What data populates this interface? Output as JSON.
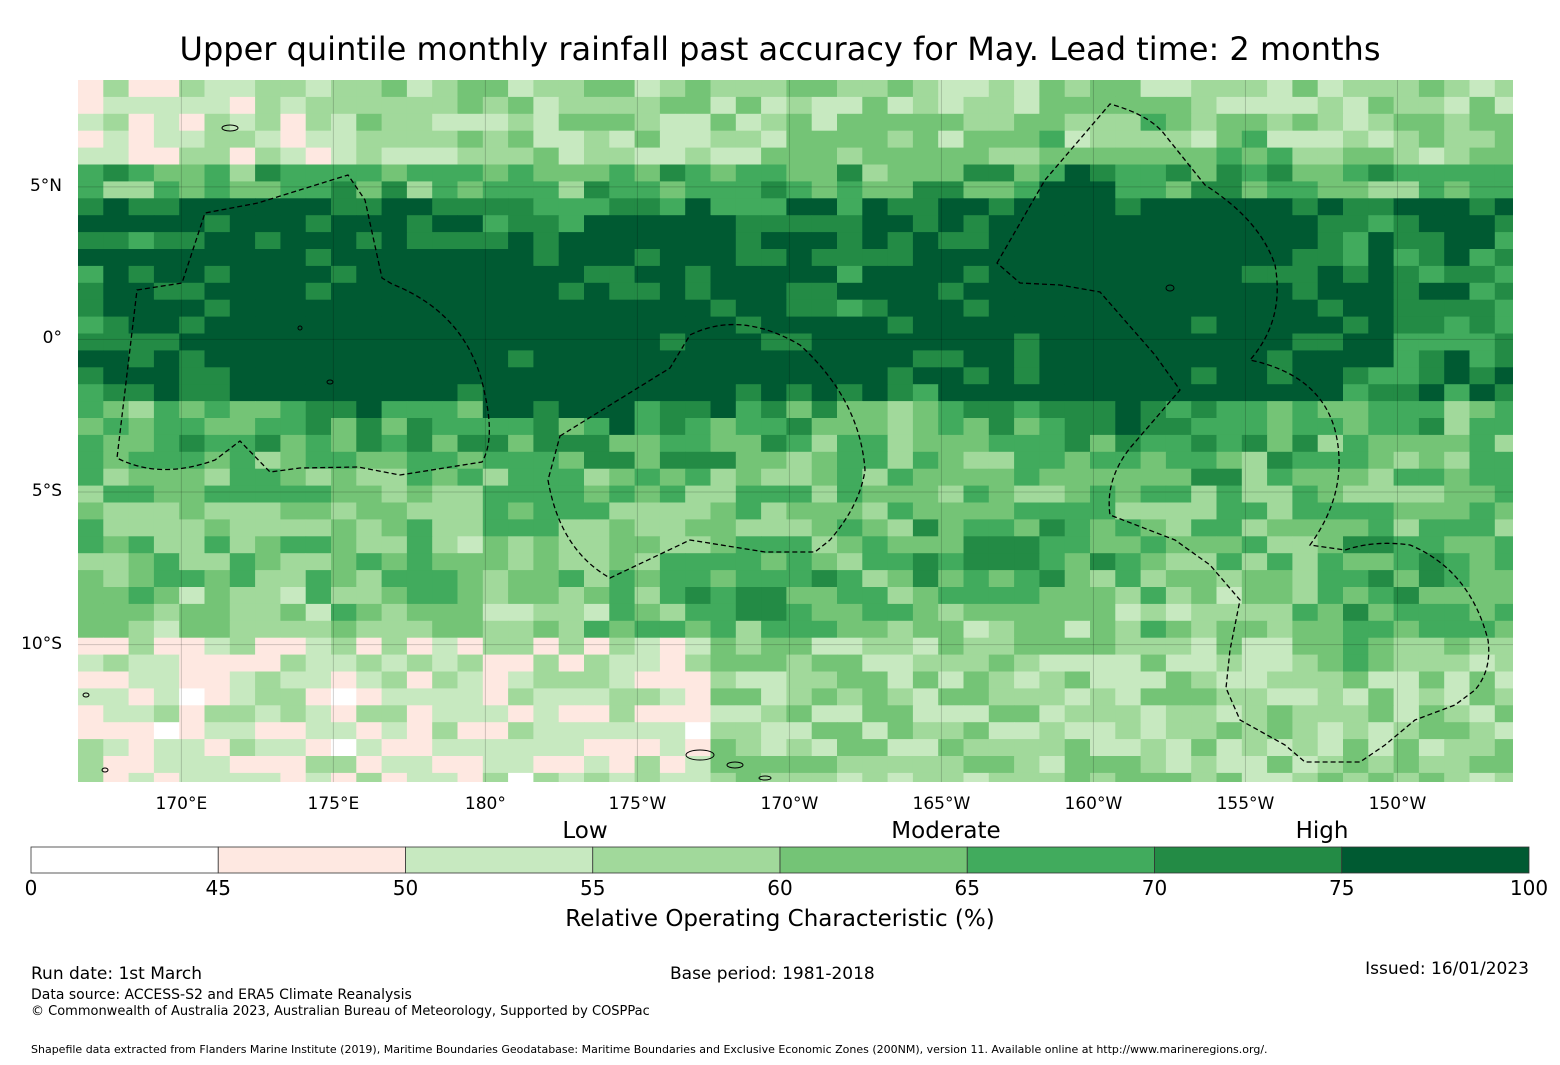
{
  "title": "Upper quintile monthly rainfall past accuracy for May. Lead time: 2 months",
  "map": {
    "lat_ticks": [
      "5°N",
      "0°",
      "5°S",
      "10°S"
    ],
    "lon_ticks": [
      "170°E",
      "175°E",
      "180°",
      "175°W",
      "170°W",
      "165°W",
      "160°W",
      "155°W",
      "150°W"
    ],
    "lat_range": [
      -14.5,
      8.5
    ],
    "lon_range": [
      166.6,
      213.8
    ],
    "lat_tick_values": [
      5,
      0,
      -5,
      -10
    ],
    "lon_tick_values": [
      170,
      175,
      180,
      185,
      190,
      195,
      200,
      205,
      210
    ]
  },
  "categories": {
    "low": "Low",
    "moderate": "Moderate",
    "high": "High"
  },
  "colorbar": {
    "ticks": [
      "0",
      "45",
      "50",
      "55",
      "60",
      "65",
      "70",
      "75",
      "100"
    ],
    "bins": [
      {
        "from": 0,
        "to": 45,
        "color": "#ffffff"
      },
      {
        "from": 45,
        "to": 50,
        "color": "#fee8e1"
      },
      {
        "from": 50,
        "to": 55,
        "color": "#c7e9c0"
      },
      {
        "from": 55,
        "to": 60,
        "color": "#a1d99b"
      },
      {
        "from": 60,
        "to": 65,
        "color": "#74c476"
      },
      {
        "from": 65,
        "to": 70,
        "color": "#41ab5d"
      },
      {
        "from": 70,
        "to": 75,
        "color": "#238b45"
      },
      {
        "from": 75,
        "to": 100,
        "color": "#005a32"
      }
    ],
    "label": "Relative Operating Characteristic (%)"
  },
  "footer": {
    "run_date": "Run date: 1st March",
    "base_period": "Base period: 1981-2018",
    "issued": "Issued: 16/01/2023",
    "data_source": "Data source: ACCESS-S2 and ERA5 Climate Reanalysis",
    "copyright": "© Commonwealth of Australia 2023, Australian Bureau of Meteorology, Supported by COSPPac",
    "shapefile": "Shapefile data extracted from Flanders Marine Institute (2019), Maritime Boundaries Geodatabase: Maritime Boundaries and Exclusive Economic Zones (200NM), version 11. Available online at http://www.marineregions.org/."
  }
}
